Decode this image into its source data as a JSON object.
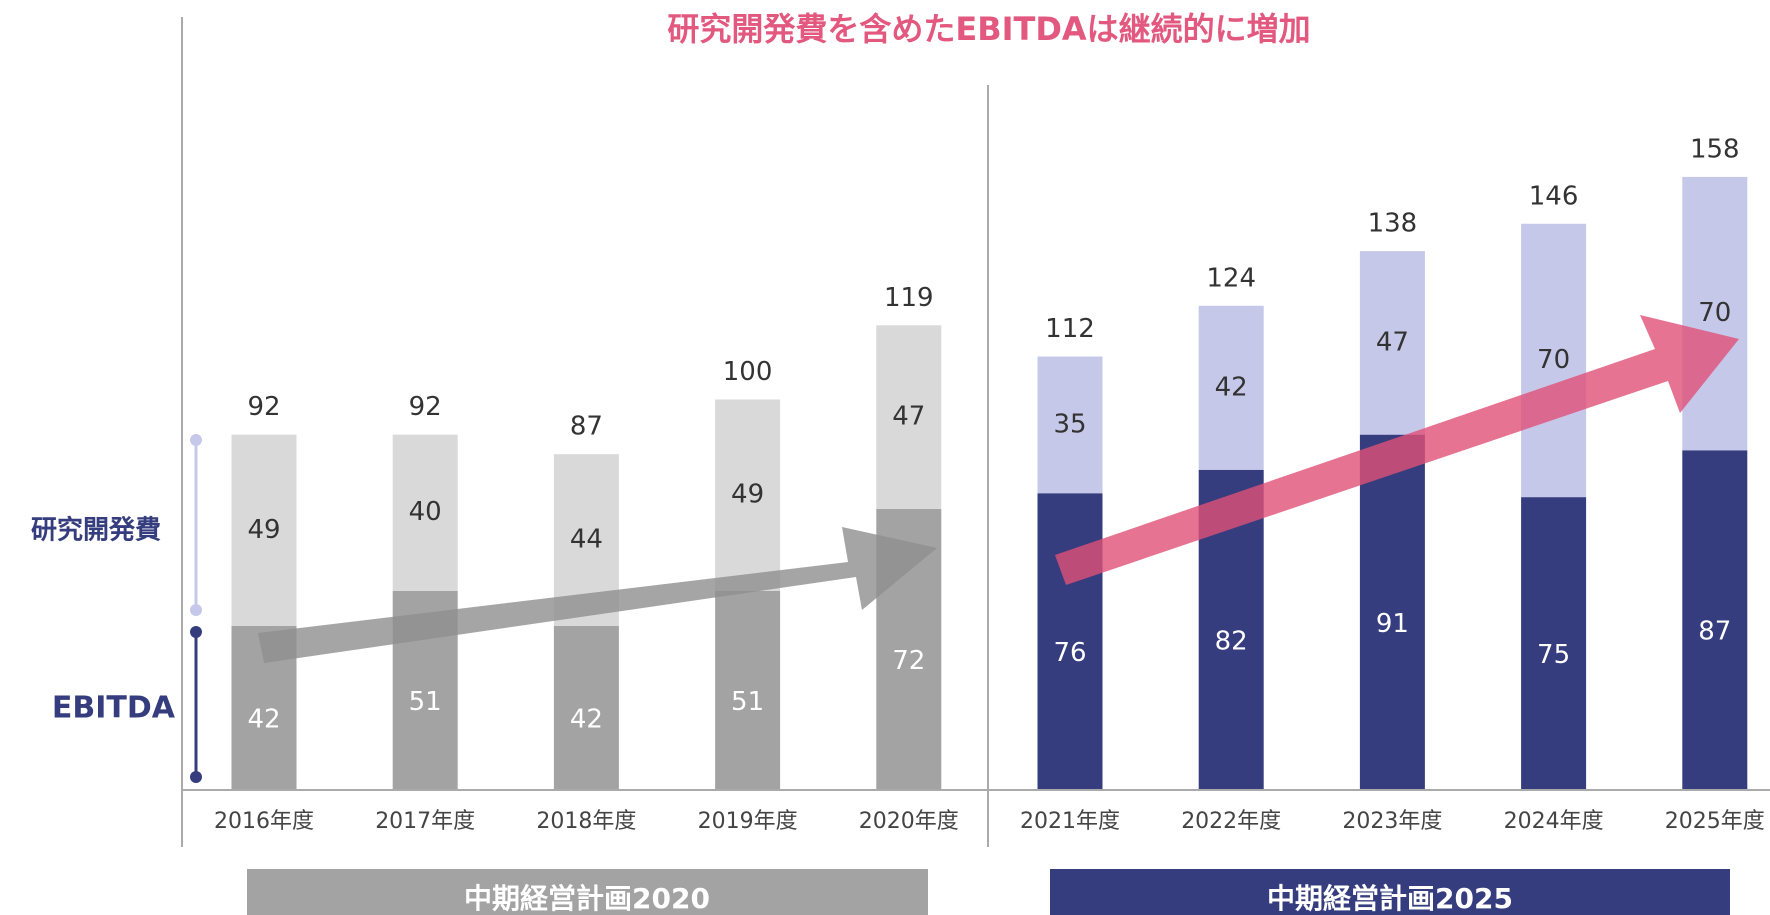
{
  "chart_data": {
    "type": "bar",
    "stacked": true,
    "title": "研究開発費を含めたEBITDAは継続的に増加",
    "categories": [
      "2016年度",
      "2017年度",
      "2018年度",
      "2019年度",
      "2020年度",
      "2021年度",
      "2022年度",
      "2023年度",
      "2024年度",
      "2025年度"
    ],
    "series": [
      {
        "name": "EBITDA",
        "values": [
          42,
          51,
          42,
          51,
          72,
          76,
          82,
          91,
          75,
          87
        ],
        "colors": [
          "#a3a3a3",
          "#a3a3a3",
          "#a3a3a3",
          "#a3a3a3",
          "#a3a3a3",
          "#353d7e",
          "#353d7e",
          "#353d7e",
          "#353d7e",
          "#353d7e"
        ]
      },
      {
        "name": "研究開発費",
        "values": [
          49,
          40,
          44,
          49,
          47,
          35,
          42,
          47,
          70,
          70
        ],
        "colors": [
          "#d9d9d9",
          "#d9d9d9",
          "#d9d9d9",
          "#d9d9d9",
          "#d9d9d9",
          "#c6c8ea",
          "#c6c8ea",
          "#c6c8ea",
          "#c6c8ea",
          "#c6c8ea"
        ]
      }
    ],
    "totals": [
      92,
      92,
      87,
      100,
      119,
      112,
      124,
      138,
      146,
      158
    ],
    "periods": [
      "中期経営計画2020",
      "中期経営計画2025"
    ],
    "title_color": "#e2587f"
  }
}
